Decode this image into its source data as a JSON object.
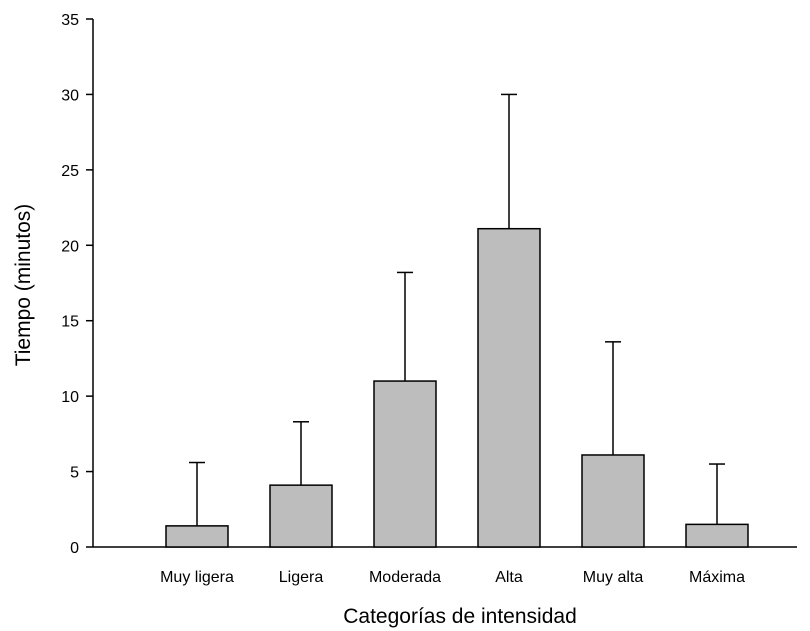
{
  "chart_data": {
    "type": "bar",
    "categories": [
      "Muy ligera",
      "Ligera",
      "Moderada",
      "Alta",
      "Muy alta",
      "Máxima"
    ],
    "values": [
      1.4,
      4.1,
      11.0,
      21.1,
      6.1,
      1.5
    ],
    "error_upper": [
      5.6,
      8.3,
      18.2,
      30.0,
      13.6,
      5.5
    ],
    "xlabel": "Categorías de intensidad",
    "ylabel": "Tiempo (minutos)",
    "ylim": [
      0,
      35
    ],
    "yticks": [
      "0",
      "5",
      "10",
      "15",
      "20",
      "25",
      "30",
      "35"
    ],
    "grid": false,
    "bar_color": "#bdbdbd"
  }
}
